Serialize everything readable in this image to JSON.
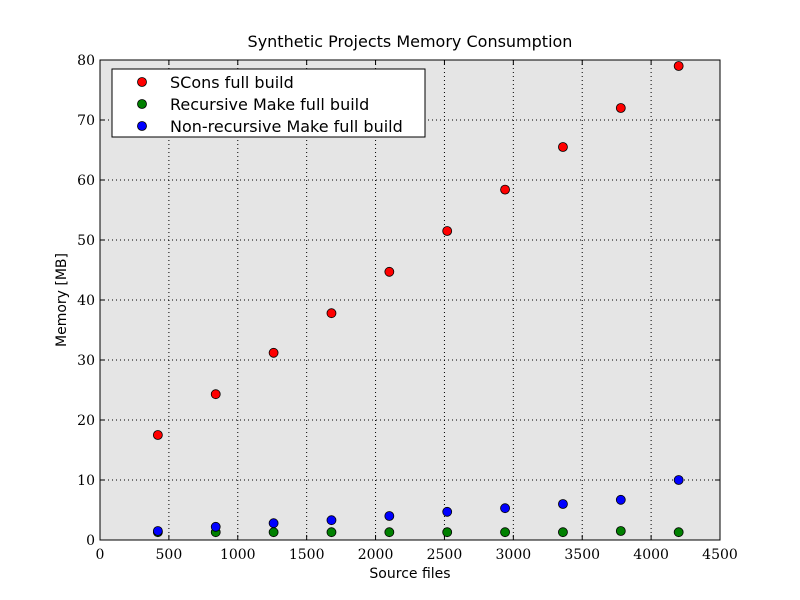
{
  "chart_data": {
    "type": "scatter",
    "title": "Synthetic Projects Memory Consumption",
    "xlabel": "Source files",
    "ylabel": "Memory [MB]",
    "xlim": [
      0,
      4500
    ],
    "ylim": [
      0,
      80
    ],
    "xticks": [
      0,
      500,
      1000,
      1500,
      2000,
      2500,
      3000,
      3500,
      4000,
      4500
    ],
    "yticks": [
      0,
      10,
      20,
      30,
      40,
      50,
      60,
      70,
      80
    ],
    "grid": true,
    "legend_position": "top-left",
    "background_color": "#e5e5e5",
    "series": [
      {
        "name": "SCons full build",
        "color": "#ff0000",
        "x": [
          420,
          840,
          1260,
          1680,
          2100,
          2520,
          2940,
          3360,
          3780,
          4200
        ],
        "y": [
          17.5,
          24.3,
          31.2,
          37.8,
          44.7,
          51.5,
          58.4,
          65.5,
          72.0,
          79.0
        ]
      },
      {
        "name": "Recursive Make full build",
        "color": "#008000",
        "x": [
          420,
          840,
          1260,
          1680,
          2100,
          2520,
          2940,
          3360,
          3780,
          4200
        ],
        "y": [
          1.3,
          1.3,
          1.3,
          1.3,
          1.3,
          1.3,
          1.3,
          1.3,
          1.5,
          1.3
        ]
      },
      {
        "name": "Non-recursive Make full build",
        "color": "#0000ff",
        "x": [
          420,
          840,
          1260,
          1680,
          2100,
          2520,
          2940,
          3360,
          3780,
          4200
        ],
        "y": [
          1.5,
          2.2,
          2.8,
          3.3,
          4.0,
          4.7,
          5.3,
          6.0,
          6.7,
          10.0
        ]
      }
    ]
  }
}
